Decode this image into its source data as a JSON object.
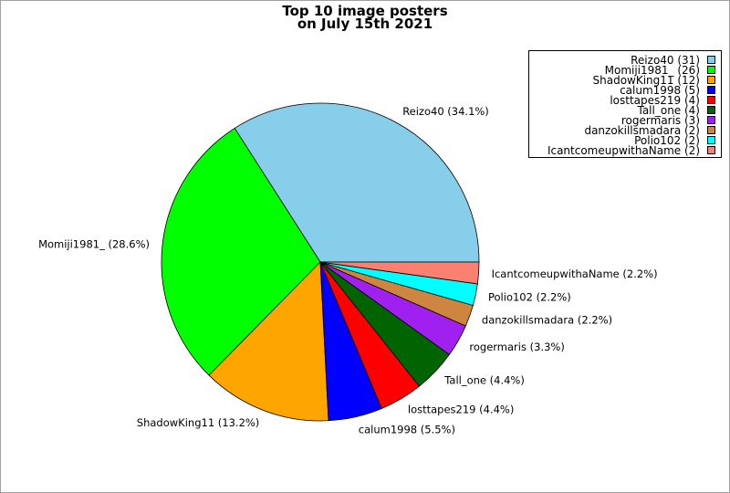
{
  "chart_data": {
    "type": "pie",
    "title": "Top 10 image posters",
    "subtitle": "on July 15th 2021",
    "slices": [
      {
        "label": "Reizo40",
        "value": 31,
        "percent": "34.1%",
        "color": "#87ceeb"
      },
      {
        "label": "Momiji1981_",
        "value": 26,
        "percent": "28.6%",
        "color": "#00ff00"
      },
      {
        "label": "ShadowKing11",
        "value": 12,
        "percent": "13.2%",
        "color": "#ffa500"
      },
      {
        "label": "calum1998",
        "value": 5,
        "percent": "5.5%",
        "color": "#0000ff"
      },
      {
        "label": "losttapes219",
        "value": 4,
        "percent": "4.4%",
        "color": "#ff0000"
      },
      {
        "label": "Tall_one",
        "value": 4,
        "percent": "4.4%",
        "color": "#006400"
      },
      {
        "label": "rogermaris",
        "value": 3,
        "percent": "3.3%",
        "color": "#a020f0"
      },
      {
        "label": "danzokillsmadara",
        "value": 2,
        "percent": "2.2%",
        "color": "#cd853f"
      },
      {
        "label": "Polio102",
        "value": 2,
        "percent": "2.2%",
        "color": "#00ffff"
      },
      {
        "label": "IcantcomeupwithaName",
        "value": 2,
        "percent": "2.2%",
        "color": "#fa8072"
      }
    ],
    "legend_placement": "top-right"
  }
}
